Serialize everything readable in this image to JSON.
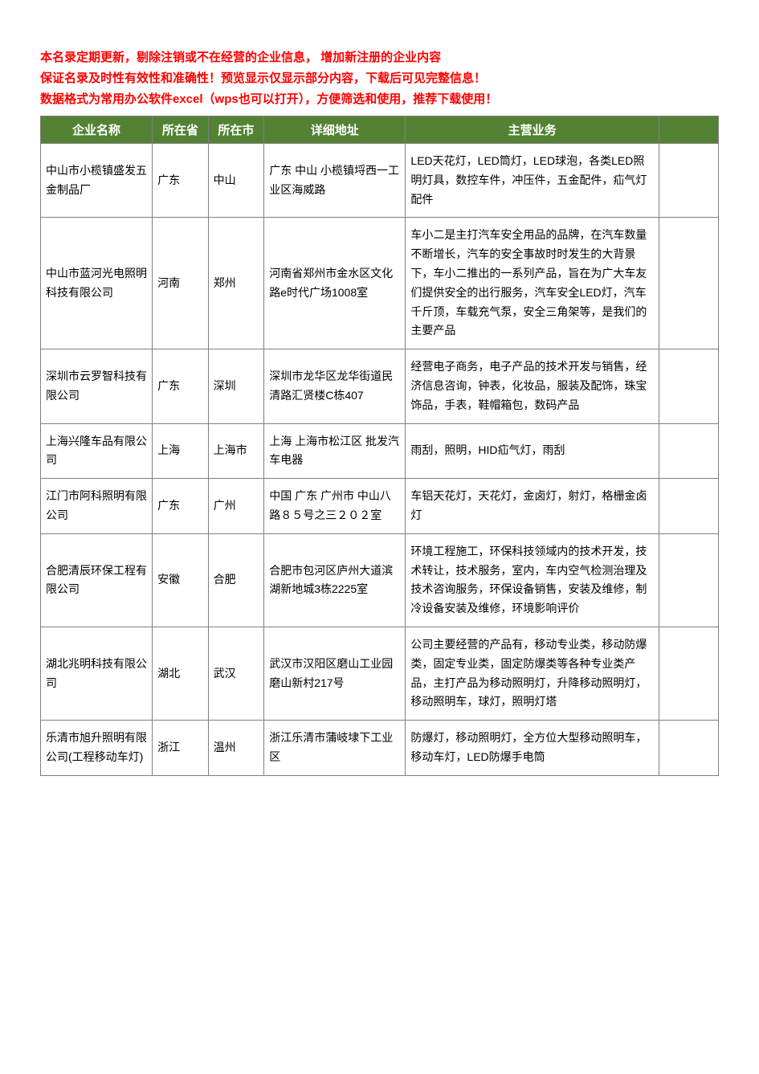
{
  "intro": {
    "line1": "本名录定期更新，剔除注销或不在经营的企业信息， 增加新注册的企业内容",
    "line2": "保证名录及时性有效性和准确性！预览显示仅显示部分内容，下载后可见完整信息！",
    "line3": "数据格式为常用办公软件excel（wps也可以打开），方便筛选和使用，推荐下载使用！"
  },
  "table": {
    "header_bg": "#548235",
    "header_fg": "#ffffff",
    "border_color": "#7f7f7f",
    "intro_color": "#ff0000",
    "columns": [
      "企业名称",
      "所在省",
      "所在市",
      "详细地址",
      "主营业务",
      ""
    ],
    "rows": [
      {
        "name": "中山市小榄镇盛发五金制品厂",
        "prov": "广东",
        "city": "中山",
        "addr": "广东  中山   小榄镇埒西一工业区海威路",
        "biz": "LED天花灯，LED筒灯，LED球泡，各类LED照明灯具，数控车件，冲压件，五金配件，疝气灯配件"
      },
      {
        "name": "中山市蓝河光电照明科技有限公司",
        "prov": "河南",
        "city": "郑州",
        "addr": "河南省郑州市金水区文化路e时代广场1008室",
        "biz": "车小二是主打汽车安全用品的品牌，在汽车数量不断增长，汽车的安全事故时时发生的大背景下，车小二推出的一系列产品，旨在为广大车友们提供安全的出行服务，汽车安全LED灯，汽车千斤顶，车载充气泵，安全三角架等，是我们的主要产品"
      },
      {
        "name": "深圳市云罗智科技有限公司",
        "prov": "广东",
        "city": "深圳",
        "addr": "深圳市龙华区龙华街道民清路汇贤楼C栋407",
        "biz": "经营电子商务，电子产品的技术开发与销售，经济信息咨询，钟表，化妆品，服装及配饰，珠宝饰品，手表，鞋帽箱包，数码产品"
      },
      {
        "name": "上海兴隆车品有限公司",
        "prov": "上海",
        "city": "上海市",
        "addr": "上海  上海市松江区  批发汽车电器",
        "biz": "雨刮，照明，HID疝气灯，雨刮"
      },
      {
        "name": "江门市阿科照明有限公司",
        "prov": "广东",
        "city": "广州",
        "addr": "中国  广东  广州市  中山八路８５号之三２０２室",
        "biz": "车铝天花灯，天花灯，金卤灯，射灯，格栅金卤灯"
      },
      {
        "name": "合肥清辰环保工程有限公司",
        "prov": "安徽",
        "city": "合肥",
        "addr": "合肥市包河区庐州大道滨湖新地城3栋2225室",
        "biz": "环境工程施工，环保科技领域内的技术开发，技术转让，技术服务，室内，车内空气检测治理及技术咨询服务，环保设备销售，安装及维修，制冷设备安装及维修，环境影响评价"
      },
      {
        "name": "湖北兆明科技有限公司",
        "prov": "湖北",
        "city": "武汉",
        "addr": "武汉市汉阳区磨山工业园磨山新村217号",
        "biz": "公司主要经营的产品有，移动专业类，移动防爆类，固定专业类，固定防爆类等各种专业类产品，主打产品为移动照明灯，升降移动照明灯，移动照明车，球灯，照明灯塔"
      },
      {
        "name": "乐清市旭升照明有限公司(工程移动车灯)",
        "prov": "浙江",
        "city": "温州",
        "addr": "浙江乐清市蒲岐埭下工业区",
        "biz": "防爆灯，移动照明灯，全方位大型移动照明车，移动车灯，LED防爆手电筒"
      }
    ]
  }
}
